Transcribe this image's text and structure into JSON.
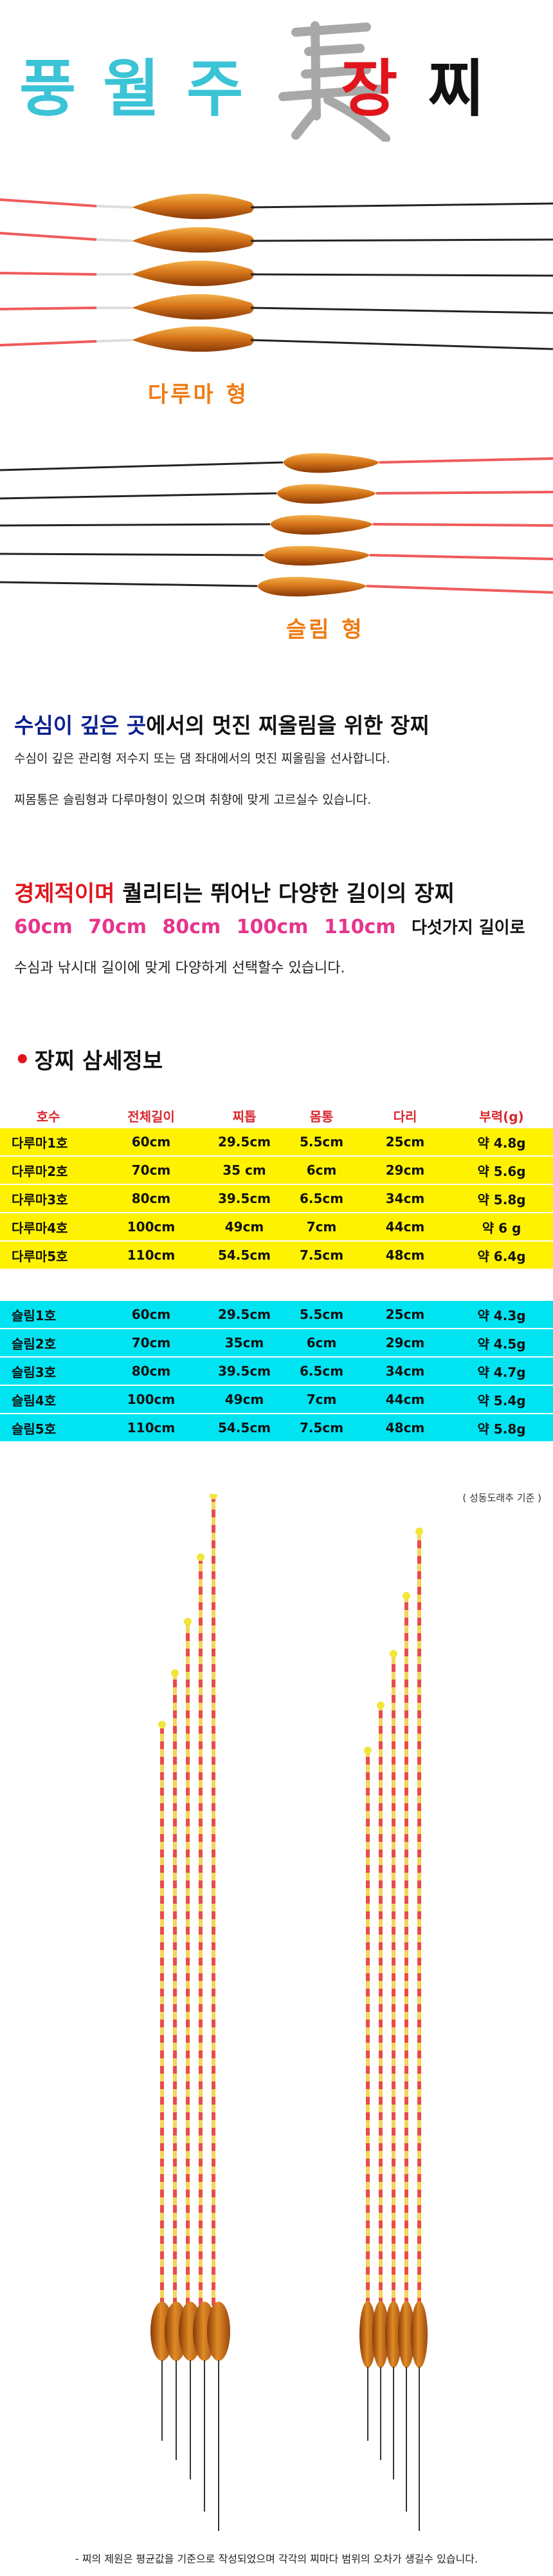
{
  "title": {
    "brand_chars": [
      "풍",
      "월",
      "주"
    ],
    "jang": "장",
    "jji": "찌"
  },
  "labels": {
    "daruma": "다루마 형",
    "slim": "슬림 형"
  },
  "section1": {
    "heading_blue": "수심이 깊은 곳",
    "heading_rest": "에서의 멋진 찌올림을 위한 장찌",
    "line1": "수심이 깊은 관리형 저수지 또는 댐 좌대에서의 멋진 찌올림을 선사합니다.",
    "line2": "찌몸통은 슬림형과 다루마형이 있으며 취향에 맞게 고르실수 있습니다."
  },
  "section2": {
    "heading_red": "경제적이며",
    "heading_rest": " 퀄리티는 뛰어난 다양한 길이의 장찌",
    "sizes": [
      "60cm",
      "70cm",
      "80cm",
      "100cm",
      "110cm"
    ],
    "sizes_rest": "다섯가지 길이로",
    "line3": "수심과 낚시대 길이에 맞게 다양하게 선택할수 있습니다."
  },
  "detail": {
    "title": "장찌 삼세정보",
    "headers": [
      "호수",
      "전체길이",
      "찌톱",
      "몸통",
      "다리",
      "부력(g)"
    ],
    "daruma_rows": [
      [
        "다루마1호",
        "60cm",
        "29.5cm",
        "5.5cm",
        "25cm",
        "약 4.8g"
      ],
      [
        "다루마2호",
        "70cm",
        "35 cm",
        "6cm",
        "29cm",
        "약 5.6g"
      ],
      [
        "다루마3호",
        "80cm",
        "39.5cm",
        "6.5cm",
        "34cm",
        "약 5.8g"
      ],
      [
        "다루마4호",
        "100cm",
        "49cm",
        "7cm",
        "44cm",
        "약  6 g"
      ],
      [
        "다루마5호",
        "110cm",
        "54.5cm",
        "7.5cm",
        "48cm",
        "약 6.4g"
      ]
    ],
    "slim_rows": [
      [
        "슬림1호",
        "60cm",
        "29.5cm",
        "5.5cm",
        "25cm",
        "약 4.3g"
      ],
      [
        "슬림2호",
        "70cm",
        "35cm",
        "6cm",
        "29cm",
        "약 4.5g"
      ],
      [
        "슬림3호",
        "80cm",
        "39.5cm",
        "6.5cm",
        "34cm",
        "약 4.7g"
      ],
      [
        "슬림4호",
        "100cm",
        "49cm",
        "7cm",
        "44cm",
        "약 5.4g"
      ],
      [
        "슬림5호",
        "110cm",
        "54.5cm",
        "7.5cm",
        "48cm",
        "약 5.8g"
      ]
    ],
    "standard_note": "( 성동도래추 기준 )"
  },
  "footer": "- 찌의 제원은 평균값을 기준으로 작성되었으며 각각의 찌마다 범위의 오차가 생길수 있습니다.",
  "colors": {
    "teal": "#3bc3d6",
    "red": "#e0151c",
    "orange": "#f07a12",
    "yellow_row": "#fff200",
    "cyan_row": "#00e4f2",
    "size_pink": "#e5358d"
  }
}
